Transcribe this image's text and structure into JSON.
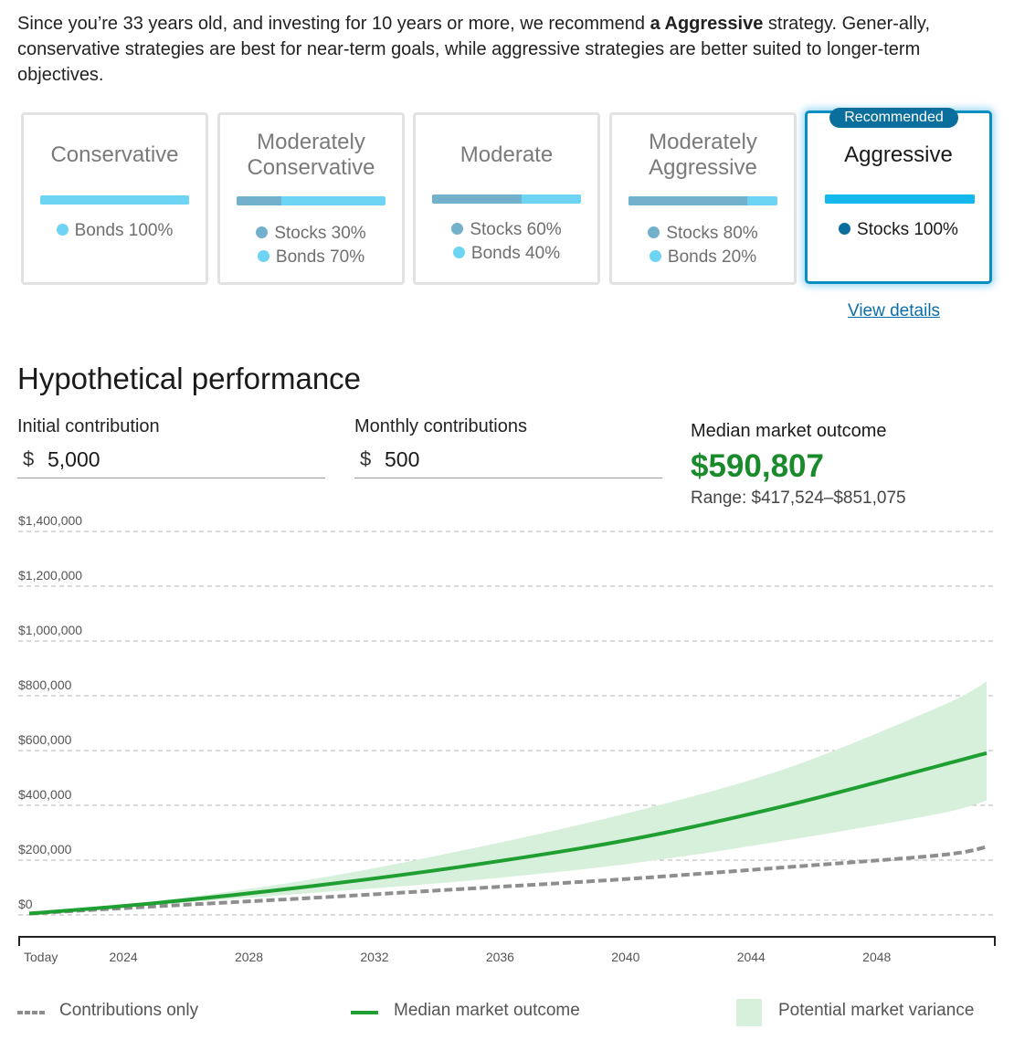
{
  "intro": {
    "text_before": "Since you’re 33 years old, and investing for 10 years or more, we recommend ",
    "strategy_bold": "a Aggressive",
    "text_after": " strategy. Gener-ally, conservative strategies are best for near-term goals, while aggressive strategies are better suited to longer-term objectives."
  },
  "strategies": [
    {
      "title": "Conservative",
      "stocks_fraction": 0,
      "allocations": [
        {
          "label": "Bonds 100%",
          "kind": "bond"
        }
      ]
    },
    {
      "title": "Moderately Conservative",
      "stocks_fraction": 0.3,
      "allocations": [
        {
          "label": "Stocks 30%",
          "kind": "stock"
        },
        {
          "label": "Bonds 70%",
          "kind": "bond"
        }
      ]
    },
    {
      "title": "Moderate",
      "stocks_fraction": 0.6,
      "allocations": [
        {
          "label": "Stocks 60%",
          "kind": "stock"
        },
        {
          "label": "Bonds 40%",
          "kind": "bond"
        }
      ]
    },
    {
      "title": "Moderately Aggressive",
      "stocks_fraction": 0.8,
      "allocations": [
        {
          "label": "Stocks 80%",
          "kind": "stock"
        },
        {
          "label": "Bonds 20%",
          "kind": "bond"
        }
      ]
    },
    {
      "title": "Aggressive",
      "stocks_fraction": 1.0,
      "badge": "Recommended",
      "allocations": [
        {
          "label": "Stocks 100%",
          "kind": "stock"
        }
      ]
    }
  ],
  "view_details": "View details",
  "performance": {
    "title": "Hypothetical performance",
    "initial": {
      "label": "Initial contribution",
      "currency": "$",
      "value": "5,000"
    },
    "monthly": {
      "label": "Monthly contributions",
      "currency": "$",
      "value": "500"
    },
    "median": {
      "label": "Median market outcome",
      "value": "$590,807",
      "range": "Range: $417,524–$851,075"
    }
  },
  "chart_data": {
    "type": "area",
    "ylim": [
      0,
      1400000
    ],
    "y_ticks": [
      {
        "value": 0,
        "label": "$0"
      },
      {
        "value": 200000,
        "label": "$200,000"
      },
      {
        "value": 400000,
        "label": "$400,000"
      },
      {
        "value": 600000,
        "label": "$600,000"
      },
      {
        "value": 800000,
        "label": "$800,000"
      },
      {
        "value": 1000000,
        "label": "$1,000,000"
      },
      {
        "value": 1200000,
        "label": "$1,200,000"
      },
      {
        "value": 1400000,
        "label": "$1,400,000"
      }
    ],
    "xlim": [
      2021,
      2051.5
    ],
    "x_ticks": [
      {
        "value": 2021,
        "label": "Today"
      },
      {
        "value": 2024,
        "label": "2024"
      },
      {
        "value": 2028,
        "label": "2028"
      },
      {
        "value": 2032,
        "label": "2032"
      },
      {
        "value": 2036,
        "label": "2036"
      },
      {
        "value": 2040,
        "label": "2040"
      },
      {
        "value": 2044,
        "label": "2044"
      },
      {
        "value": 2048,
        "label": "2048"
      }
    ],
    "x": [
      2021,
      2025,
      2030,
      2035,
      2040,
      2045,
      2050,
      2051.5
    ],
    "series": [
      {
        "name": "Contributions only",
        "style": "dashed",
        "color": "#8e8e8e",
        "values": [
          5000,
          31000,
          62000,
          96000,
          131000,
          173000,
          218000,
          248000
        ]
      },
      {
        "name": "Median market outcome",
        "style": "solid",
        "color": "#1f9e32",
        "values": [
          5000,
          43000,
          105000,
          180000,
          272000,
          396000,
          545000,
          590807
        ]
      },
      {
        "name": "Potential market variance (low)",
        "style": "band-low",
        "color": "#d7f0db",
        "values": [
          5000,
          37000,
          80000,
          125000,
          185000,
          270000,
          370000,
          417524
        ]
      },
      {
        "name": "Potential market variance (high)",
        "style": "band-high",
        "color": "#d7f0db",
        "values": [
          5000,
          50000,
          130000,
          240000,
          370000,
          530000,
          760000,
          851075
        ]
      }
    ],
    "legend": [
      {
        "label": "Contributions only",
        "kind": "dashed"
      },
      {
        "label": "Median market outcome",
        "kind": "line"
      },
      {
        "label": "Potential market variance",
        "kind": "area"
      }
    ]
  }
}
